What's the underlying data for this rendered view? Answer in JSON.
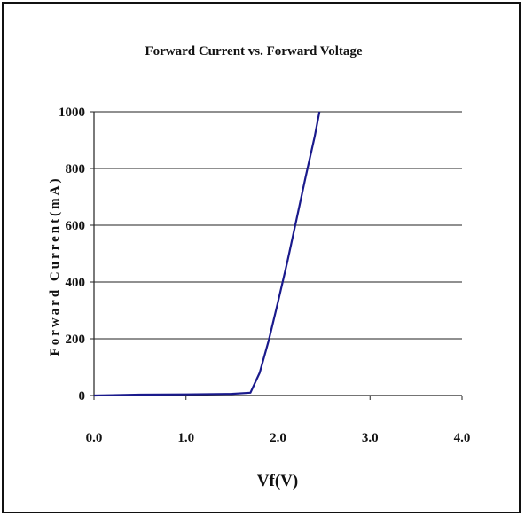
{
  "chart_data": {
    "type": "line",
    "title": "Forward Current vs. Forward Voltage",
    "xlabel": "Vf(V)",
    "ylabel": "Forward Current(mA)",
    "xlim": [
      0.0,
      4.0
    ],
    "ylim": [
      0,
      1000
    ],
    "x_ticks": [
      "0.0",
      "1.0",
      "2.0",
      "3.0",
      "4.0"
    ],
    "y_ticks": [
      "0",
      "200",
      "400",
      "600",
      "800",
      "1000"
    ],
    "grid": "horizontal",
    "series": [
      {
        "color": "#1a1a8c",
        "points": [
          [
            0.0,
            0
          ],
          [
            0.5,
            3
          ],
          [
            1.0,
            4
          ],
          [
            1.5,
            6
          ],
          [
            1.7,
            10
          ],
          [
            1.8,
            80
          ],
          [
            1.9,
            195
          ],
          [
            2.0,
            330
          ],
          [
            2.1,
            470
          ],
          [
            2.2,
            620
          ],
          [
            2.3,
            770
          ],
          [
            2.4,
            915
          ],
          [
            2.45,
            1000
          ]
        ]
      }
    ]
  }
}
